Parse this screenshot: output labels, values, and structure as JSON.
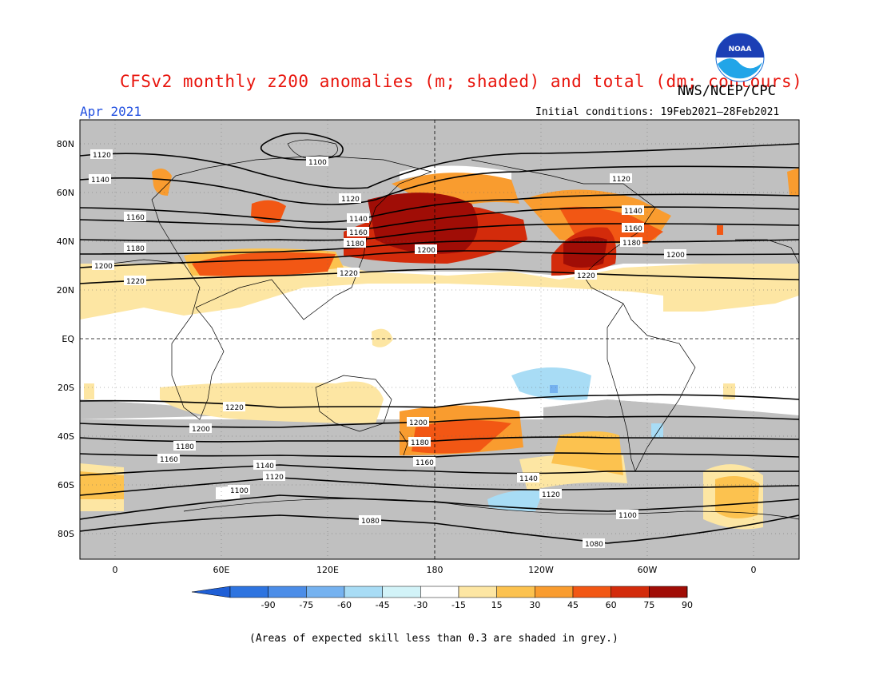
{
  "header": {
    "title": "CFSv2 monthly z200 anomalies (m; shaded) and total (dm; contours)",
    "period": "Apr 2021",
    "agency": "NWS/NCEP/CPC",
    "initial_conditions": "Initial conditions: 19Feb2021–28Feb2021",
    "logo_text": "NOAA"
  },
  "map": {
    "lat_labels": [
      "80N",
      "60N",
      "40N",
      "20N",
      "EQ",
      "20S",
      "40S",
      "60S",
      "80S"
    ],
    "lon_labels": [
      "0",
      "60E",
      "120E",
      "180",
      "120W",
      "60W",
      "0"
    ],
    "contour_labels": [
      "1100",
      "1120",
      "1140",
      "1120",
      "1140",
      "1160",
      "1160",
      "1180",
      "1180",
      "1200",
      "1200",
      "1220",
      "1220",
      "1120",
      "1140",
      "1160",
      "1180",
      "1200",
      "1220",
      "1220",
      "1200",
      "1200",
      "1180",
      "1180",
      "1160",
      "1160",
      "1140",
      "1140",
      "1120",
      "1120",
      "1100",
      "1100",
      "1080",
      "1080"
    ]
  },
  "legend": {
    "tick_labels": [
      "-90",
      "-75",
      "-60",
      "-45",
      "-30",
      "-15",
      "15",
      "30",
      "45",
      "60",
      "75",
      "90"
    ],
    "colors": [
      "#1f5fd6",
      "#2e74e0",
      "#4b8de8",
      "#75b2f0",
      "#a8dcf5",
      "#d2f3f8",
      "#ffffff",
      "#fde6a3",
      "#fcc24f",
      "#f99c2f",
      "#f25714",
      "#d32b0b",
      "#a00d06",
      "#7a0a05"
    ]
  },
  "footer": {
    "note": "(Areas of expected skill less than 0.3 are shaded in grey.)"
  },
  "colors": {
    "title": "#e8140c",
    "period": "#2250e0",
    "skill_grey": "#c0c0c0"
  }
}
